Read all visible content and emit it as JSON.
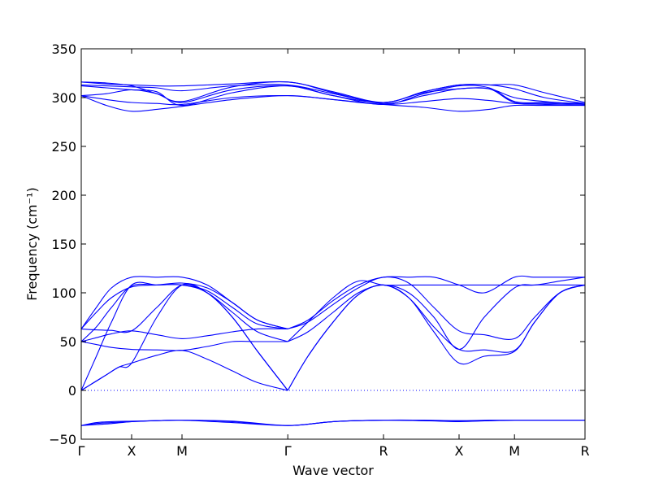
{
  "chart_data": {
    "type": "line",
    "title": "",
    "xlabel": "Wave vector",
    "ylabel": "Frequency (cm⁻¹)",
    "ylim": [
      -50,
      350
    ],
    "yticks": [
      -50,
      0,
      50,
      100,
      150,
      200,
      250,
      300,
      350
    ],
    "grid": false,
    "reference_line": {
      "y": 0,
      "style": "dotted"
    },
    "kpoints": [
      "Γ",
      "X",
      "M",
      "Γ",
      "R",
      "X",
      "M",
      "R"
    ],
    "kpoint_positions": [
      0,
      0.1,
      0.2,
      0.41,
      0.6,
      0.75,
      0.86,
      1.0
    ],
    "line_color": "#0000ff",
    "series": [
      {
        "x": [
          0,
          0.03,
          0.06,
          0.1,
          0.15,
          0.2,
          0.3,
          0.41,
          0.5,
          0.6,
          0.68,
          0.75,
          0.81,
          0.86,
          0.92,
          1.0
        ],
        "values": [
          -36,
          -33,
          -32,
          -31.5,
          -31,
          -30.5,
          -31.5,
          -36,
          -32,
          -30.5,
          -31,
          -32,
          -31,
          -30.5,
          -30.5,
          -30.5
        ]
      },
      {
        "x": [
          0,
          0.03,
          0.06,
          0.1,
          0.15,
          0.2,
          0.3,
          0.41,
          0.5,
          0.6,
          0.68,
          0.75,
          0.81,
          0.86,
          0.92,
          1.0
        ],
        "values": [
          -36,
          -34,
          -33,
          -32,
          -31,
          -30.5,
          -32,
          -36,
          -32,
          -30.5,
          -31,
          -31.5,
          -31,
          -30.5,
          -30.5,
          -30.5
        ]
      },
      {
        "x": [
          0,
          0.03,
          0.06,
          0.1,
          0.15,
          0.2,
          0.3,
          0.41,
          0.5,
          0.6,
          0.68,
          0.75,
          0.81,
          0.86,
          0.92,
          1.0
        ],
        "values": [
          -36,
          -35,
          -34,
          -32,
          -31,
          -30.5,
          -33,
          -36,
          -32,
          -30.5,
          -30.5,
          -31,
          -30.5,
          -30.5,
          -30.5,
          -30.5
        ]
      },
      {
        "x": [
          0,
          0.025,
          0.05,
          0.075,
          0.1,
          0.15,
          0.2,
          0.25,
          0.3,
          0.35,
          0.41
        ],
        "values": [
          0,
          8,
          16,
          24,
          28,
          36,
          41,
          32,
          20,
          8,
          0
        ]
      },
      {
        "x": [
          0,
          0.025,
          0.05,
          0.075,
          0.1,
          0.15,
          0.2,
          0.25,
          0.3,
          0.35,
          0.41
        ],
        "values": [
          0,
          8,
          16,
          24,
          28,
          75,
          108,
          100,
          75,
          40,
          0
        ]
      },
      {
        "x": [
          0,
          0.03,
          0.06,
          0.1,
          0.15,
          0.2,
          0.25,
          0.3,
          0.35,
          0.41
        ],
        "values": [
          0,
          35,
          70,
          108,
          108,
          108,
          100,
          75,
          40,
          0
        ]
      },
      {
        "x": [
          0,
          0.03,
          0.06,
          0.1,
          0.15,
          0.2,
          0.25,
          0.3,
          0.35,
          0.41
        ],
        "values": [
          50,
          47,
          44,
          42,
          41.5,
          41,
          45,
          50,
          50,
          50
        ]
      },
      {
        "x": [
          0,
          0.03,
          0.06,
          0.1,
          0.15,
          0.2,
          0.25,
          0.3,
          0.35,
          0.41
        ],
        "values": [
          50,
          54,
          58,
          61,
          57,
          53,
          56,
          60,
          63,
          63
        ]
      },
      {
        "x": [
          0,
          0.03,
          0.06,
          0.1,
          0.15,
          0.2,
          0.25,
          0.3,
          0.35,
          0.41
        ],
        "values": [
          63,
          62,
          61.5,
          61,
          85,
          108,
          100,
          80,
          60,
          50
        ]
      },
      {
        "x": [
          0,
          0.03,
          0.06,
          0.1,
          0.15,
          0.2,
          0.25,
          0.3,
          0.35,
          0.41
        ],
        "values": [
          63,
          80,
          95,
          106,
          108,
          108,
          102,
          85,
          68,
          63
        ]
      },
      {
        "x": [
          0,
          0.03,
          0.06,
          0.1,
          0.15,
          0.2,
          0.25,
          0.3,
          0.35,
          0.41
        ],
        "values": [
          50,
          65,
          85,
          107,
          108,
          110,
          105,
          90,
          72,
          63
        ]
      },
      {
        "x": [
          0,
          0.03,
          0.06,
          0.1,
          0.15,
          0.2,
          0.25,
          0.3,
          0.35,
          0.41
        ],
        "values": [
          63,
          85,
          105,
          116,
          116,
          116,
          108,
          90,
          72,
          63
        ]
      },
      {
        "x": [
          0.41,
          0.45,
          0.5,
          0.55,
          0.6,
          0.65,
          0.7,
          0.75,
          0.8,
          0.86,
          0.9,
          0.95,
          1.0
        ],
        "values": [
          0,
          35,
          70,
          98,
          108,
          95,
          60,
          28,
          35,
          40,
          70,
          100,
          108
        ]
      },
      {
        "x": [
          0.41,
          0.45,
          0.5,
          0.55,
          0.6,
          0.65,
          0.7,
          0.75,
          0.8,
          0.86,
          0.9,
          0.95,
          1.0
        ],
        "values": [
          0,
          35,
          70,
          98,
          108,
          95,
          65,
          42,
          41.5,
          41,
          70,
          100,
          108
        ]
      },
      {
        "x": [
          0.41,
          0.45,
          0.5,
          0.55,
          0.6,
          0.65,
          0.7,
          0.75,
          0.8,
          0.86,
          0.9,
          0.95,
          1.0
        ],
        "values": [
          50,
          60,
          80,
          100,
          108,
          100,
          75,
          42,
          75,
          105,
          108,
          108,
          108
        ]
      },
      {
        "x": [
          0.41,
          0.45,
          0.5,
          0.55,
          0.6,
          0.65,
          0.7,
          0.75,
          0.8,
          0.86,
          0.9,
          0.95,
          1.0
        ],
        "values": [
          63,
          70,
          88,
          105,
          116,
          110,
          85,
          61,
          57,
          53,
          75,
          100,
          108
        ]
      },
      {
        "x": [
          0.41,
          0.45,
          0.5,
          0.55,
          0.6,
          0.65,
          0.7,
          0.75,
          0.8,
          0.86,
          0.9,
          0.95,
          1.0
        ],
        "values": [
          63,
          72,
          92,
          108,
          116,
          116,
          116,
          108,
          100,
          116,
          116,
          116,
          116
        ]
      },
      {
        "x": [
          0.41,
          0.45,
          0.5,
          0.55,
          0.6,
          0.65,
          0.7,
          0.75,
          0.8,
          0.86,
          0.9,
          0.95,
          1.0
        ],
        "values": [
          50,
          70,
          95,
          112,
          108,
          108,
          108,
          108,
          108,
          108,
          108,
          112,
          116
        ]
      },
      {
        "x": [
          0,
          0.05,
          0.1,
          0.15,
          0.2,
          0.3,
          0.41,
          0.5,
          0.6,
          0.68,
          0.75,
          0.81,
          0.86,
          0.92,
          1.0
        ],
        "values": [
          302,
          292,
          286,
          288,
          291,
          298,
          302,
          298,
          293,
          290,
          286,
          288,
          292,
          292,
          292
        ]
      },
      {
        "x": [
          0,
          0.05,
          0.1,
          0.15,
          0.2,
          0.3,
          0.41,
          0.5,
          0.6,
          0.68,
          0.75,
          0.81,
          0.86,
          0.92,
          1.0
        ],
        "values": [
          302,
          298,
          295,
          294,
          293,
          300,
          302,
          298,
          293,
          296,
          299,
          297,
          294,
          293,
          292
        ]
      },
      {
        "x": [
          0,
          0.05,
          0.1,
          0.15,
          0.2,
          0.3,
          0.41,
          0.5,
          0.6,
          0.68,
          0.75,
          0.81,
          0.86,
          0.92,
          1.0
        ],
        "values": [
          302,
          304,
          308,
          304,
          295,
          308,
          312,
          302,
          295,
          305,
          309,
          309,
          295,
          294,
          293
        ]
      },
      {
        "x": [
          0,
          0.05,
          0.1,
          0.15,
          0.2,
          0.3,
          0.41,
          0.5,
          0.6,
          0.68,
          0.75,
          0.81,
          0.86,
          0.92,
          1.0
        ],
        "values": [
          312,
          310,
          308,
          306,
          292,
          305,
          312,
          302,
          293,
          304,
          312,
          310,
          296,
          295,
          294
        ]
      },
      {
        "x": [
          0,
          0.05,
          0.1,
          0.15,
          0.2,
          0.3,
          0.41,
          0.5,
          0.6,
          0.68,
          0.75,
          0.81,
          0.86,
          0.92,
          1.0
        ],
        "values": [
          313,
          312,
          311,
          310,
          307,
          312,
          313,
          304,
          295,
          306,
          313,
          313,
          309,
          300,
          294
        ]
      },
      {
        "x": [
          0,
          0.05,
          0.1,
          0.15,
          0.2,
          0.3,
          0.41,
          0.5,
          0.6,
          0.68,
          0.75,
          0.81,
          0.86,
          0.92,
          1.0
        ],
        "values": [
          316,
          314,
          313,
          312,
          312,
          314,
          316,
          306,
          295,
          306,
          313,
          313,
          313,
          305,
          295
        ]
      },
      {
        "x": [
          0,
          0.05,
          0.1,
          0.15,
          0.2,
          0.3,
          0.41,
          0.5,
          0.6,
          0.68,
          0.75,
          0.81,
          0.86,
          0.92,
          1.0
        ],
        "values": [
          316,
          315,
          312,
          304,
          296,
          311,
          316,
          305,
          294,
          302,
          309,
          309,
          300,
          296,
          293
        ]
      }
    ]
  }
}
